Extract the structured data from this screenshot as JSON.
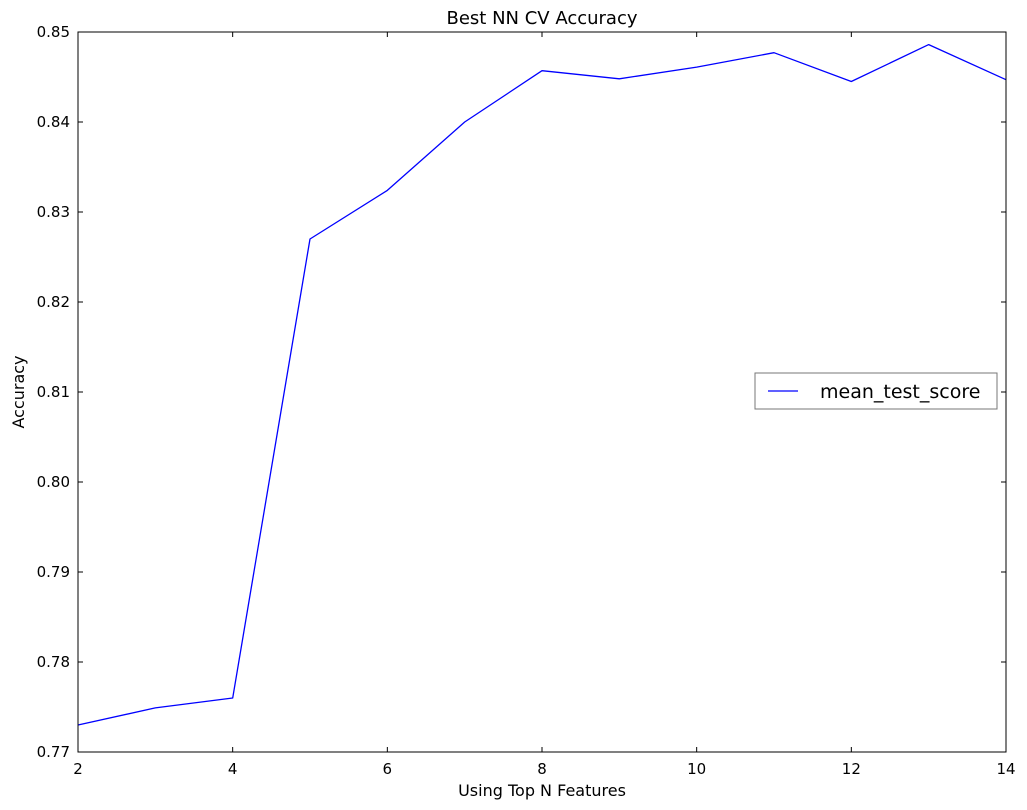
{
  "chart_data": {
    "type": "line",
    "title": "Best NN CV Accuracy",
    "xlabel": "Using Top N Features",
    "ylabel": "Accuracy",
    "xlim": [
      2,
      14
    ],
    "ylim": [
      0.77,
      0.85
    ],
    "xticks": [
      2,
      4,
      6,
      8,
      10,
      12,
      14
    ],
    "xtick_labels": [
      "2",
      "4",
      "6",
      "8",
      "10",
      "12",
      "14"
    ],
    "yticks": [
      0.77,
      0.78,
      0.79,
      0.8,
      0.81,
      0.82,
      0.83,
      0.84,
      0.85
    ],
    "ytick_labels": [
      "0.77",
      "0.78",
      "0.79",
      "0.80",
      "0.81",
      "0.82",
      "0.83",
      "0.84",
      "0.85"
    ],
    "grid": false,
    "legend_position": "center-right",
    "x": [
      2,
      3,
      4,
      5,
      6,
      7,
      8,
      9,
      10,
      11,
      12,
      13,
      14
    ],
    "series": [
      {
        "name": "mean_test_score",
        "color": "#0000ff",
        "values": [
          0.773,
          0.7749,
          0.776,
          0.827,
          0.8324,
          0.84,
          0.8457,
          0.8448,
          0.8461,
          0.8477,
          0.8445,
          0.8486,
          0.8447
        ]
      }
    ]
  }
}
